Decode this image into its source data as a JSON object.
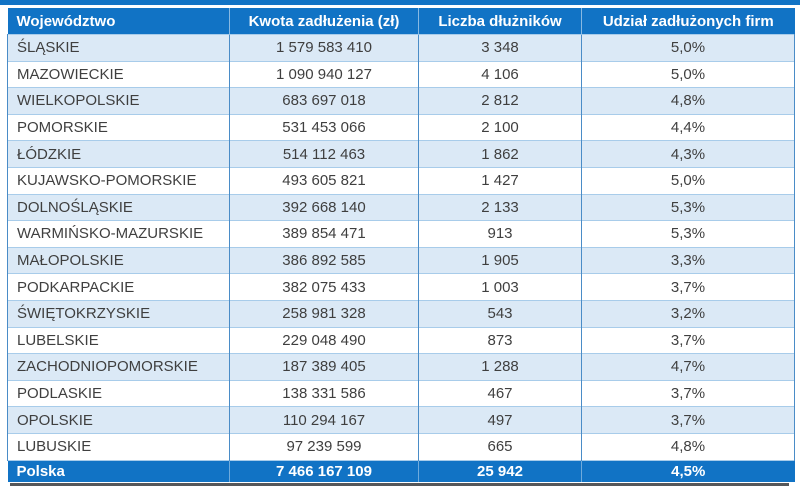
{
  "chart_data": {
    "type": "table",
    "columns": [
      "Województwo",
      "Kwota zadłużenia (zł)",
      "Liczba dłużników",
      "Udział zadłużonych firm"
    ],
    "rows": [
      [
        "ŚLĄSKIE",
        "1 579 583 410",
        "3 348",
        "5,0%"
      ],
      [
        "MAZOWIECKIE",
        "1 090 940 127",
        "4 106",
        "5,0%"
      ],
      [
        "WIELKOPOLSKIE",
        "683 697 018",
        "2 812",
        "4,8%"
      ],
      [
        "POMORSKIE",
        "531 453 066",
        "2 100",
        "4,4%"
      ],
      [
        "ŁÓDZKIE",
        "514 112 463",
        "1 862",
        "4,3%"
      ],
      [
        "KUJAWSKO-POMORSKIE",
        "493 605 821",
        "1 427",
        "5,0%"
      ],
      [
        "DOLNOŚLĄSKIE",
        "392 668 140",
        "2 133",
        "5,3%"
      ],
      [
        "WARMIŃSKO-MAZURSKIE",
        "389 854 471",
        "913",
        "5,3%"
      ],
      [
        "MAŁOPOLSKIE",
        "386 892 585",
        "1 905",
        "3,3%"
      ],
      [
        "PODKARPACKIE",
        "382 075 433",
        "1 003",
        "3,7%"
      ],
      [
        "ŚWIĘTOKRZYSKIE",
        "258 981 328",
        "543",
        "3,2%"
      ],
      [
        "LUBELSKIE",
        "229 048 490",
        "873",
        "3,7%"
      ],
      [
        "ZACHODNIOPOMORSKIE",
        "187 389 405",
        "1 288",
        "4,7%"
      ],
      [
        "PODLASKIE",
        "138 331 586",
        "467",
        "3,7%"
      ],
      [
        "OPOLSKIE",
        "110 294 167",
        "497",
        "3,7%"
      ],
      [
        "LUBUSKIE",
        "97 239 599",
        "665",
        "4,8%"
      ]
    ],
    "footer_row": [
      "Polska",
      "7 466 167 109",
      "25 942",
      "4,5%"
    ]
  },
  "colors": {
    "accent-blue": "#1173C5",
    "stripe-blue": "#DBE9F6",
    "grid-vertical": "#4A8CC7",
    "grid-horizontal": "#A8CCEA",
    "body-text": "#3F3F3F",
    "header-text": "#FFFFFF",
    "shadow-gray": "#55575A"
  }
}
